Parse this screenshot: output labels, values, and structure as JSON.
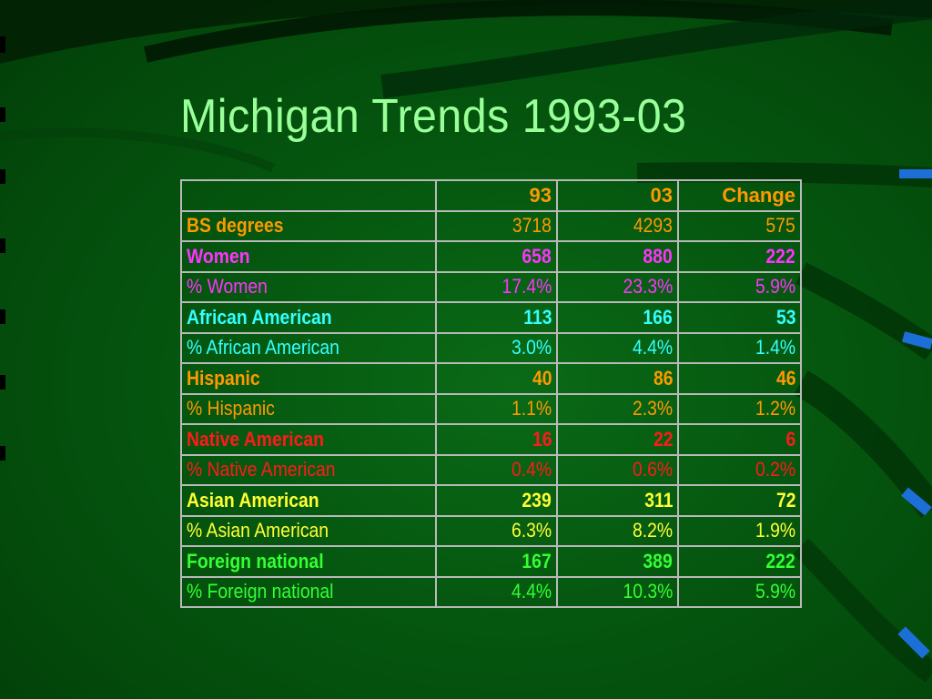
{
  "slide": {
    "title": "Michigan Trends 1993-03"
  },
  "table": {
    "header": [
      "",
      "93",
      "03",
      "Change"
    ],
    "rows": [
      {
        "label": "BS  degrees",
        "v93": "3718",
        "v03": "4293",
        "change": "575",
        "color": "#ff9900",
        "bold": true,
        "numbold": false
      },
      {
        "label": "Women",
        "v93": "658",
        "v03": "880",
        "change": "222",
        "color": "#ff33ff",
        "bold": true,
        "numbold": true
      },
      {
        "label": "%  Women",
        "v93": "17.4%",
        "v03": "23.3%",
        "change": "5.9%",
        "color": "#ff33ff",
        "bold": false,
        "numbold": false
      },
      {
        "label": "African American",
        "v93": "113",
        "v03": "166",
        "change": "53",
        "color": "#33ffff",
        "bold": true,
        "numbold": true
      },
      {
        "label": "%  African American",
        "v93": "3.0%",
        "v03": "4.4%",
        "change": "1.4%",
        "color": "#33ffff",
        "bold": false,
        "numbold": false
      },
      {
        "label": "Hispanic",
        "v93": "40",
        "v03": "86",
        "change": "46",
        "color": "#ff9900",
        "bold": true,
        "numbold": true
      },
      {
        "label": "% Hispanic",
        "v93": "1.1%",
        "v03": "2.3%",
        "change": "1.2%",
        "color": "#ff9900",
        "bold": false,
        "numbold": false
      },
      {
        "label": "Native American",
        "v93": "16",
        "v03": "22",
        "change": "6",
        "color": "#ff1a1a",
        "bold": true,
        "numbold": true
      },
      {
        "label": "%  Native American",
        "v93": "0.4%",
        "v03": "0.6%",
        "change": "0.2%",
        "color": "#ff1a1a",
        "bold": false,
        "numbold": false
      },
      {
        "label": "Asian American",
        "v93": "239",
        "v03": "311",
        "change": "72",
        "color": "#ffff33",
        "bold": true,
        "numbold": true
      },
      {
        "label": "% Asian American",
        "v93": "6.3%",
        "v03": "8.2%",
        "change": "1.9%",
        "color": "#ffff33",
        "bold": false,
        "numbold": false
      },
      {
        "label": "Foreign national",
        "v93": "167",
        "v03": "389",
        "change": "222",
        "color": "#33ff33",
        "bold": true,
        "numbold": true
      },
      {
        "label": "%  Foreign national",
        "v93": "4.4%",
        "v03": "10.3%",
        "change": "5.9%",
        "color": "#33ff33",
        "bold": false,
        "numbold": false
      }
    ]
  },
  "colors": {
    "title": "#99ff99",
    "header": "#ff9900",
    "grid": "#b9b9b9"
  }
}
